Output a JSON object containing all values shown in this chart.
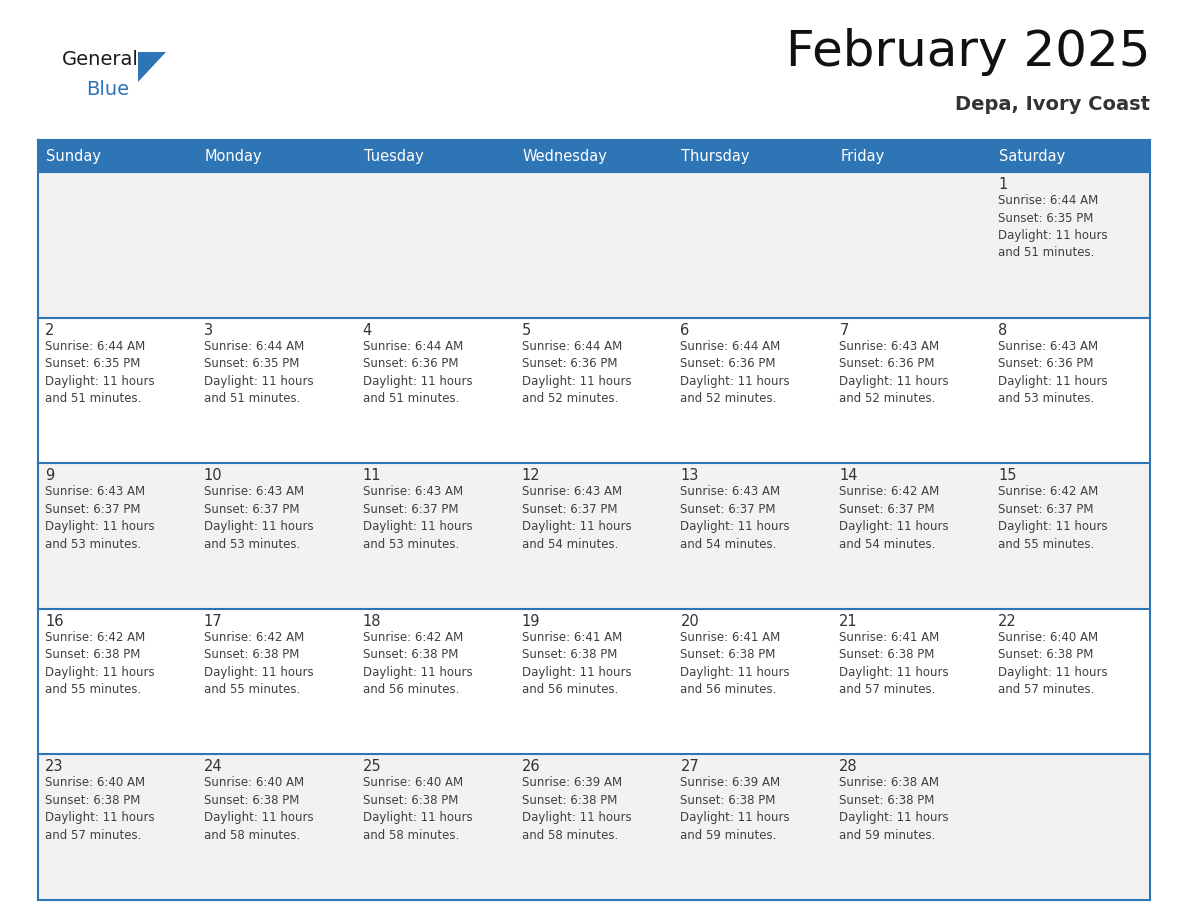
{
  "title": "February 2025",
  "subtitle": "Depa, Ivory Coast",
  "header_bg": "#2E75B6",
  "header_text_color": "#FFFFFF",
  "day_names": [
    "Sunday",
    "Monday",
    "Tuesday",
    "Wednesday",
    "Thursday",
    "Friday",
    "Saturday"
  ],
  "row_bg_even": "#F2F2F2",
  "row_bg_odd": "#FFFFFF",
  "cell_text_color": "#404040",
  "day_num_color": "#333333",
  "divider_color": "#2E75B6",
  "calendar": [
    [
      null,
      null,
      null,
      null,
      null,
      null,
      {
        "day": 1,
        "sunrise": "6:44 AM",
        "sunset": "6:35 PM",
        "daylight": "11 hours\nand 51 minutes."
      }
    ],
    [
      {
        "day": 2,
        "sunrise": "6:44 AM",
        "sunset": "6:35 PM",
        "daylight": "11 hours\nand 51 minutes."
      },
      {
        "day": 3,
        "sunrise": "6:44 AM",
        "sunset": "6:35 PM",
        "daylight": "11 hours\nand 51 minutes."
      },
      {
        "day": 4,
        "sunrise": "6:44 AM",
        "sunset": "6:36 PM",
        "daylight": "11 hours\nand 51 minutes."
      },
      {
        "day": 5,
        "sunrise": "6:44 AM",
        "sunset": "6:36 PM",
        "daylight": "11 hours\nand 52 minutes."
      },
      {
        "day": 6,
        "sunrise": "6:44 AM",
        "sunset": "6:36 PM",
        "daylight": "11 hours\nand 52 minutes."
      },
      {
        "day": 7,
        "sunrise": "6:43 AM",
        "sunset": "6:36 PM",
        "daylight": "11 hours\nand 52 minutes."
      },
      {
        "day": 8,
        "sunrise": "6:43 AM",
        "sunset": "6:36 PM",
        "daylight": "11 hours\nand 53 minutes."
      }
    ],
    [
      {
        "day": 9,
        "sunrise": "6:43 AM",
        "sunset": "6:37 PM",
        "daylight": "11 hours\nand 53 minutes."
      },
      {
        "day": 10,
        "sunrise": "6:43 AM",
        "sunset": "6:37 PM",
        "daylight": "11 hours\nand 53 minutes."
      },
      {
        "day": 11,
        "sunrise": "6:43 AM",
        "sunset": "6:37 PM",
        "daylight": "11 hours\nand 53 minutes."
      },
      {
        "day": 12,
        "sunrise": "6:43 AM",
        "sunset": "6:37 PM",
        "daylight": "11 hours\nand 54 minutes."
      },
      {
        "day": 13,
        "sunrise": "6:43 AM",
        "sunset": "6:37 PM",
        "daylight": "11 hours\nand 54 minutes."
      },
      {
        "day": 14,
        "sunrise": "6:42 AM",
        "sunset": "6:37 PM",
        "daylight": "11 hours\nand 54 minutes."
      },
      {
        "day": 15,
        "sunrise": "6:42 AM",
        "sunset": "6:37 PM",
        "daylight": "11 hours\nand 55 minutes."
      }
    ],
    [
      {
        "day": 16,
        "sunrise": "6:42 AM",
        "sunset": "6:38 PM",
        "daylight": "11 hours\nand 55 minutes."
      },
      {
        "day": 17,
        "sunrise": "6:42 AM",
        "sunset": "6:38 PM",
        "daylight": "11 hours\nand 55 minutes."
      },
      {
        "day": 18,
        "sunrise": "6:42 AM",
        "sunset": "6:38 PM",
        "daylight": "11 hours\nand 56 minutes."
      },
      {
        "day": 19,
        "sunrise": "6:41 AM",
        "sunset": "6:38 PM",
        "daylight": "11 hours\nand 56 minutes."
      },
      {
        "day": 20,
        "sunrise": "6:41 AM",
        "sunset": "6:38 PM",
        "daylight": "11 hours\nand 56 minutes."
      },
      {
        "day": 21,
        "sunrise": "6:41 AM",
        "sunset": "6:38 PM",
        "daylight": "11 hours\nand 57 minutes."
      },
      {
        "day": 22,
        "sunrise": "6:40 AM",
        "sunset": "6:38 PM",
        "daylight": "11 hours\nand 57 minutes."
      }
    ],
    [
      {
        "day": 23,
        "sunrise": "6:40 AM",
        "sunset": "6:38 PM",
        "daylight": "11 hours\nand 57 minutes."
      },
      {
        "day": 24,
        "sunrise": "6:40 AM",
        "sunset": "6:38 PM",
        "daylight": "11 hours\nand 58 minutes."
      },
      {
        "day": 25,
        "sunrise": "6:40 AM",
        "sunset": "6:38 PM",
        "daylight": "11 hours\nand 58 minutes."
      },
      {
        "day": 26,
        "sunrise": "6:39 AM",
        "sunset": "6:38 PM",
        "daylight": "11 hours\nand 58 minutes."
      },
      {
        "day": 27,
        "sunrise": "6:39 AM",
        "sunset": "6:38 PM",
        "daylight": "11 hours\nand 59 minutes."
      },
      {
        "day": 28,
        "sunrise": "6:38 AM",
        "sunset": "6:38 PM",
        "daylight": "11 hours\nand 59 minutes."
      },
      null
    ]
  ]
}
